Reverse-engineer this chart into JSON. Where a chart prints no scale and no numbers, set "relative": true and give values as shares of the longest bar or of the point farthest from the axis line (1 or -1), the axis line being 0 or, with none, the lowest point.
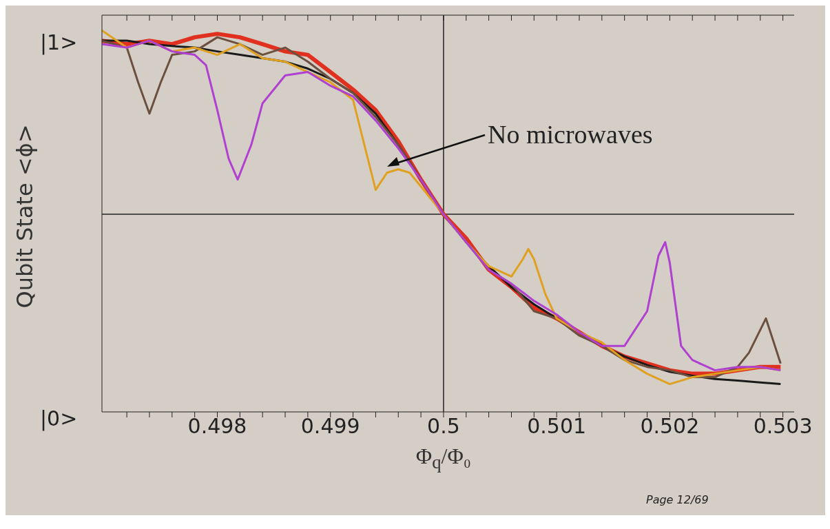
{
  "chart_data": {
    "type": "line",
    "relative": true,
    "xlabel": "Φ$_{q}$/Φ₀",
    "ylabel": "Qubit State <ϕ>",
    "annotations": [
      "No microwaves",
      "Page 12/69",
      "|1>",
      "|0>"
    ],
    "xlim": [
      0.49698,
      0.5031
    ],
    "xticks": [
      {
        "value": 0.4972,
        "label": null
      },
      {
        "value": 0.4974,
        "label": null
      },
      {
        "value": 0.4976,
        "label": null
      },
      {
        "value": 0.4978,
        "label": null
      },
      0.498,
      {
        "value": 0.4982,
        "label": null
      },
      {
        "value": 0.4984,
        "label": null
      },
      {
        "value": 0.4986,
        "label": null
      },
      {
        "value": 0.4988,
        "label": null
      },
      0.499,
      {
        "value": 0.4992,
        "label": null
      },
      {
        "value": 0.4994,
        "label": null
      },
      {
        "value": 0.4996,
        "label": null
      },
      {
        "value": 0.4998,
        "label": null
      },
      0.5,
      {
        "value": 0.5002,
        "label": null
      },
      {
        "value": 0.5004,
        "label": null
      },
      {
        "value": 0.5006,
        "label": null
      },
      {
        "value": 0.5008,
        "label": null
      },
      0.501,
      {
        "value": 0.5012,
        "label": null
      },
      {
        "value": 0.5014,
        "label": null
      },
      {
        "value": 0.5016,
        "label": null
      },
      {
        "value": 0.5018,
        "label": null
      },
      0.502,
      {
        "value": 0.5022,
        "label": null
      },
      {
        "value": 0.5024,
        "label": null
      },
      {
        "value": 0.5026,
        "label": null
      },
      {
        "value": 0.5028,
        "label": null
      },
      0.503
    ],
    "ref_lines": [
      {
        "axis": "x",
        "value": 0.5,
        "color": "#222222"
      },
      {
        "axis": "y",
        "value": 0.518,
        "color": "#222222"
      }
    ],
    "grid": false,
    "marker": "none",
    "line_style": "solid",
    "series": [
      {
        "color": "#e03020",
        "x": [
          0.49698,
          0.4972,
          0.4974,
          0.4976,
          0.4978,
          0.498,
          0.4982,
          0.4984,
          0.4986,
          0.4988,
          0.499,
          0.4992,
          0.4994,
          0.4996,
          0.4998,
          0.5,
          0.5002,
          0.5004,
          0.5006,
          0.5008,
          0.501,
          0.5012,
          0.5014,
          0.5016,
          0.5018,
          0.502,
          0.5022,
          0.5024,
          0.5026,
          0.5028,
          0.50298
        ],
        "values": [
          0.973,
          0.964,
          0.973,
          0.964,
          0.982,
          0.991,
          0.982,
          0.964,
          0.945,
          0.936,
          0.891,
          0.845,
          0.791,
          0.709,
          0.609,
          0.518,
          0.455,
          0.373,
          0.327,
          0.273,
          0.245,
          0.209,
          0.173,
          0.145,
          0.127,
          0.109,
          0.1,
          0.1,
          0.109,
          0.118,
          0.118
        ]
      },
      {
        "color": "#1a1a1a",
        "x": [
          0.49698,
          0.4972,
          0.4974,
          0.4976,
          0.4978,
          0.498,
          0.4982,
          0.4984,
          0.4986,
          0.4988,
          0.499,
          0.4992,
          0.4994,
          0.4996,
          0.4998,
          0.5,
          0.5002,
          0.5004,
          0.5006,
          0.5008,
          0.501,
          0.5012,
          0.5014,
          0.5016,
          0.5018,
          0.502,
          0.5022,
          0.5024,
          0.5026,
          0.5028,
          0.50298
        ],
        "values": [
          0.973,
          0.973,
          0.964,
          0.959,
          0.955,
          0.945,
          0.936,
          0.927,
          0.918,
          0.9,
          0.873,
          0.836,
          0.782,
          0.7,
          0.609,
          0.518,
          0.445,
          0.382,
          0.327,
          0.282,
          0.245,
          0.209,
          0.173,
          0.145,
          0.123,
          0.105,
          0.095,
          0.086,
          0.082,
          0.077,
          0.073
        ]
      },
      {
        "color": "#6b5040",
        "x": [
          0.49698,
          0.4972,
          0.4973,
          0.4974,
          0.4975,
          0.4976,
          0.4978,
          0.498,
          0.4982,
          0.4984,
          0.4986,
          0.4988,
          0.499,
          0.4992,
          0.4994,
          0.4996,
          0.4998,
          0.5,
          0.5002,
          0.5004,
          0.5006,
          0.5008,
          0.501,
          0.5012,
          0.5014,
          0.5016,
          0.5018,
          0.502,
          0.5022,
          0.5024,
          0.5026,
          0.5027,
          0.50285,
          0.5029,
          0.50298
        ],
        "values": [
          0.973,
          0.955,
          0.864,
          0.782,
          0.864,
          0.936,
          0.945,
          0.982,
          0.964,
          0.936,
          0.955,
          0.918,
          0.873,
          0.836,
          0.773,
          0.7,
          0.609,
          0.518,
          0.445,
          0.373,
          0.336,
          0.264,
          0.245,
          0.2,
          0.173,
          0.136,
          0.118,
          0.109,
          0.091,
          0.091,
          0.118,
          0.155,
          0.245,
          0.2,
          0.127
        ]
      },
      {
        "color": "#e0a020",
        "x": [
          0.49698,
          0.4972,
          0.4974,
          0.4976,
          0.4978,
          0.498,
          0.4982,
          0.4984,
          0.4986,
          0.4988,
          0.499,
          0.4992,
          0.4993,
          0.4994,
          0.4995,
          0.4996,
          0.4997,
          0.4998,
          0.5,
          0.5002,
          0.5004,
          0.5006,
          0.5007,
          0.50075,
          0.5008,
          0.5009,
          0.501,
          0.5012,
          0.5014,
          0.5016,
          0.5018,
          0.502,
          0.5022,
          0.5024,
          0.5026,
          0.5028,
          0.50298
        ],
        "values": [
          1.0,
          0.955,
          0.973,
          0.945,
          0.955,
          0.936,
          0.964,
          0.927,
          0.918,
          0.891,
          0.864,
          0.818,
          0.7,
          0.582,
          0.627,
          0.636,
          0.627,
          0.591,
          0.518,
          0.445,
          0.382,
          0.355,
          0.4,
          0.427,
          0.4,
          0.309,
          0.245,
          0.209,
          0.182,
          0.136,
          0.1,
          0.073,
          0.091,
          0.1,
          0.109,
          0.118,
          0.109
        ]
      },
      {
        "color": "#b040d0",
        "x": [
          0.49698,
          0.4972,
          0.4974,
          0.4976,
          0.4978,
          0.4979,
          0.498,
          0.4981,
          0.49818,
          0.4983,
          0.4984,
          0.4986,
          0.4988,
          0.499,
          0.4992,
          0.4994,
          0.4996,
          0.4998,
          0.5,
          0.5002,
          0.5004,
          0.5006,
          0.5008,
          0.501,
          0.5012,
          0.5014,
          0.5016,
          0.5018,
          0.5019,
          0.50196,
          0.502,
          0.5021,
          0.5022,
          0.5024,
          0.5026,
          0.5028,
          0.50298
        ],
        "values": [
          0.964,
          0.955,
          0.973,
          0.945,
          0.936,
          0.909,
          0.791,
          0.664,
          0.609,
          0.7,
          0.809,
          0.882,
          0.891,
          0.855,
          0.827,
          0.764,
          0.691,
          0.609,
          0.518,
          0.445,
          0.373,
          0.336,
          0.291,
          0.255,
          0.209,
          0.173,
          0.173,
          0.264,
          0.409,
          0.445,
          0.391,
          0.173,
          0.136,
          0.109,
          0.118,
          0.118,
          0.109
        ]
      }
    ]
  }
}
